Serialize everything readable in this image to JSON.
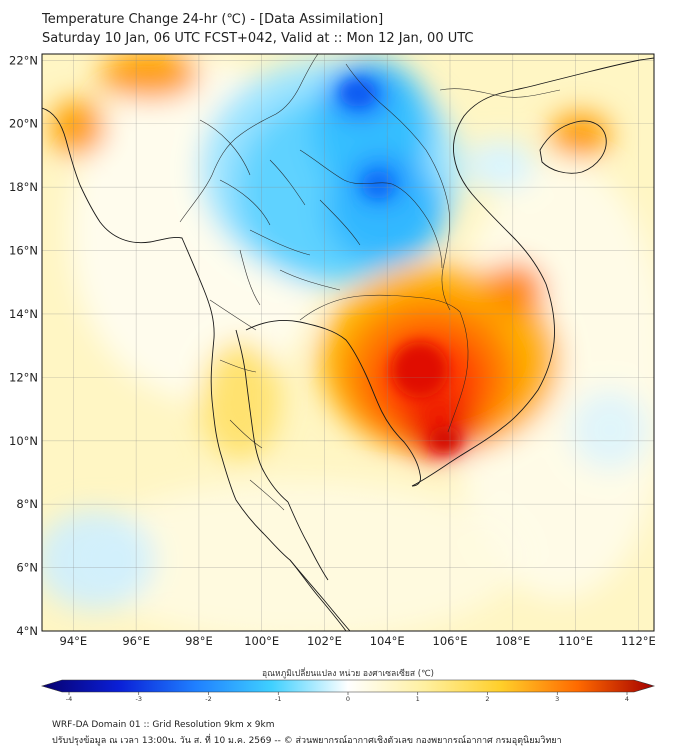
{
  "title": {
    "line1": "Temperature Change 24-hr (℃) - [Data Assimilation]",
    "line2": "Saturday 10 Jan, 06 UTC FCST+042, Valid at :: Mon 12 Jan, 00 UTC"
  },
  "axes": {
    "lat_labels": [
      "22°N",
      "20°N",
      "18°N",
      "16°N",
      "14°N",
      "12°N",
      "10°N",
      "8°N",
      "6°N",
      "4°N"
    ],
    "lon_labels": [
      "94°E",
      "96°E",
      "98°E",
      "100°E",
      "102°E",
      "104°E",
      "106°E",
      "108°E",
      "110°E",
      "112°E"
    ],
    "lat_range": [
      4,
      22.2
    ],
    "lon_range": [
      93,
      112.5
    ]
  },
  "colorbar": {
    "title": "อุณหภูมิเปลี่ยนแปลง หน่วย องศาเซลเซียส (℃)",
    "tick_labels": [
      "-4",
      "-3",
      "-2",
      "-1",
      "0",
      "1",
      "2",
      "3",
      "4"
    ],
    "range": [
      -4,
      4
    ],
    "colors": [
      "#08006e",
      "#0a1fd6",
      "#1f7fff",
      "#3fd0ff",
      "#ffffff",
      "#fff0a0",
      "#ffcf2a",
      "#ff6a00",
      "#a40000"
    ]
  },
  "footer": {
    "line1": "WRF-DA Domain 01 :: Grid Resolution 9km x 9km",
    "line2": "ปรับปรุงข้อมูล ณ เวลา 13:00น. วัน ส. ที่ 10 ม.ค. 2569 -- © ส่วนพยากรณ์อากาศเชิงตัวเลข กองพยากรณ์อากาศ กรมอุตุนิยมวิทยา"
  },
  "field_anomalies": [
    {
      "name": "cold-laos-north",
      "lon": 103.6,
      "lat": 20.9,
      "value": -2.6
    },
    {
      "name": "cold-laos-central",
      "lon": 103.9,
      "lat": 18.0,
      "value": -2.5
    },
    {
      "name": "cold-northeast-thailand",
      "lon": 102.5,
      "lat": 16.5,
      "value": -1.8
    },
    {
      "name": "cold-north-thailand",
      "lon": 99.8,
      "lat": 18.5,
      "value": -1.4
    },
    {
      "name": "cold-hainan-gulf",
      "lon": 108.5,
      "lat": 18.0,
      "value": -0.5
    },
    {
      "name": "warm-cambodia",
      "lon": 105.3,
      "lat": 12.2,
      "value": 3.4
    },
    {
      "name": "warm-mekong-delta",
      "lon": 105.5,
      "lat": 10.3,
      "value": 3.0
    },
    {
      "name": "warm-vietnam-central",
      "lon": 108.0,
      "lat": 14.7,
      "value": 2.5
    },
    {
      "name": "warm-myanmar-north",
      "lon": 96.0,
      "lat": 21.3,
      "value": 2.7
    },
    {
      "name": "warm-bangladesh",
      "lon": 94.3,
      "lat": 20.0,
      "value": 2.8
    },
    {
      "name": "warm-hainan",
      "lon": 110.0,
      "lat": 19.7,
      "value": 2.9
    },
    {
      "name": "warm-gulf-thailand",
      "lon": 100.5,
      "lat": 10.0,
      "value": 1.0
    },
    {
      "name": "cold-andaman-sw",
      "lon": 93.5,
      "lat": 7.5,
      "value": -0.8
    },
    {
      "name": "warm-andaman",
      "lon": 94.5,
      "lat": 12.0,
      "value": 0.8
    }
  ]
}
